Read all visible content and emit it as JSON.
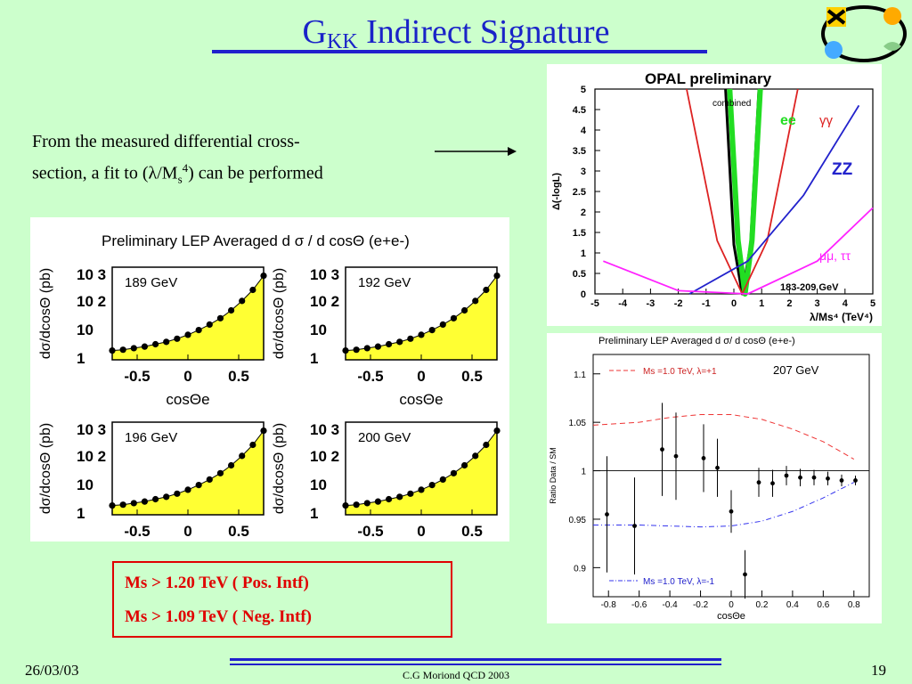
{
  "title_main": "G",
  "title_sub": "KK",
  "title_rest": " Indirect Signature",
  "intro_line1": "From the measured differential cross-",
  "intro_line2a": "section, a fit to (",
  "intro_lambda": "λ",
  "intro_line2b": "/M",
  "intro_sub": "s",
  "intro_sup": "4",
  "intro_line2c": ")  can be performed",
  "lep_panel": {
    "title": "Preliminary LEP Averaged  d σ / d cosΘ (e+e-)",
    "ylabel": "dσ/dcosΘ (pb)",
    "xlabel": "cosΘe",
    "y_ticks": [
      "10 3",
      "10 2",
      "10",
      "1"
    ],
    "x_ticks": [
      "-0.5",
      "0",
      "0.5"
    ],
    "energies": [
      "189 GeV",
      "192 GeV",
      "196 GeV",
      "200 GeV"
    ]
  },
  "result_box": {
    "line1": "Ms > 1.20 TeV ( Pos. Intf)",
    "line2": "Ms > 1.09 TeV ( Neg. Intf)"
  },
  "chart_data": [
    {
      "type": "line",
      "title": "OPAL preliminary",
      "ylabel": "Δ(-logL)",
      "xlabel": "λ/Ms⁴ (TeV⁴)",
      "xlim": [
        -5,
        5
      ],
      "ylim": [
        0,
        5
      ],
      "x_ticks": [
        "-5",
        "-4",
        "-3",
        "-2",
        "-1",
        "0",
        "1",
        "2",
        "3",
        "4",
        "5"
      ],
      "y_ticks": [
        "0",
        "0.5",
        "1",
        "1.5",
        "2",
        "2.5",
        "3",
        "3.5",
        "4",
        "4.5",
        "5"
      ],
      "annotations": [
        "combined",
        "ee",
        "γγ",
        "ZZ",
        "μμ, ττ",
        "183-209 GeV"
      ],
      "series": [
        {
          "name": "combined",
          "color": "#000000",
          "x": [
            -0.3,
            0,
            0.3,
            0.6,
            0.9
          ],
          "y": [
            5,
            1.2,
            0,
            1.2,
            5
          ]
        },
        {
          "name": "ee",
          "color": "#22dd22",
          "x": [
            -0.15,
            0.15,
            0.4,
            0.65,
            0.95
          ],
          "y": [
            5,
            1.3,
            0,
            1.3,
            5
          ]
        },
        {
          "name": "γγ",
          "color": "#dd2222",
          "x": [
            -1.7,
            -0.6,
            0.3,
            1.2,
            2.3
          ],
          "y": [
            5,
            1.3,
            0,
            1.3,
            5
          ]
        },
        {
          "name": "ZZ",
          "color": "#2222cc",
          "x": [
            -1.6,
            0.5,
            2.5,
            4.5
          ],
          "y": [
            0,
            0.8,
            2.4,
            4.6
          ]
        },
        {
          "name": "μμ, ττ",
          "color": "#ff22ff",
          "x": [
            -4.7,
            -2,
            0.5,
            3,
            5
          ],
          "y": [
            0.8,
            0.08,
            0,
            0.8,
            2.1
          ]
        }
      ]
    },
    {
      "type": "scatter",
      "title": "Preliminary LEP Averaged  d σ/ d cosΘ (e+e-)",
      "ylabel": "Ratio Data / SM",
      "xlabel": "cosΘe",
      "xlim": [
        -0.9,
        0.9
      ],
      "ylim": [
        0.87,
        1.12
      ],
      "x_ticks": [
        "-0.8",
        "-0.6",
        "-0.4",
        "-0.2",
        "0",
        "0.2",
        "0.4",
        "0.6",
        "0.8"
      ],
      "y_ticks": [
        "0.9",
        "0.95",
        "1",
        "1.05",
        "1.1"
      ],
      "annotations": [
        "207 GeV",
        "Ms =1.0 TeV, λ=+1",
        "Ms =1.0 TeV, λ=-1"
      ],
      "points": {
        "x": [
          -0.81,
          -0.63,
          -0.45,
          -0.36,
          -0.18,
          -0.09,
          0.0,
          0.09,
          0.18,
          0.27,
          0.36,
          0.45,
          0.54,
          0.63,
          0.72,
          0.81
        ],
        "y": [
          0.955,
          0.943,
          1.022,
          1.015,
          1.013,
          1.003,
          0.958,
          0.893,
          0.988,
          0.987,
          0.995,
          0.993,
          0.993,
          0.992,
          0.99,
          0.99
        ]
      },
      "series": [
        {
          "name": "Ms =1.0 TeV, λ=+1",
          "color": "#ee3333",
          "x": [
            -0.9,
            -0.6,
            -0.4,
            -0.2,
            0,
            0.2,
            0.4,
            0.6,
            0.8
          ],
          "y": [
            1.047,
            1.05,
            1.055,
            1.058,
            1.058,
            1.053,
            1.043,
            1.03,
            1.012
          ]
        },
        {
          "name": "Ms =1.0 TeV, λ=-1",
          "color": "#3333ee",
          "x": [
            -0.9,
            -0.6,
            -0.4,
            -0.2,
            0,
            0.2,
            0.4,
            0.6,
            0.8
          ],
          "y": [
            0.944,
            0.944,
            0.943,
            0.942,
            0.943,
            0.948,
            0.958,
            0.972,
            0.988
          ]
        }
      ]
    }
  ],
  "footer": {
    "date": "26/03/03",
    "center": "C.G Moriond QCD 2003",
    "page": "19"
  }
}
